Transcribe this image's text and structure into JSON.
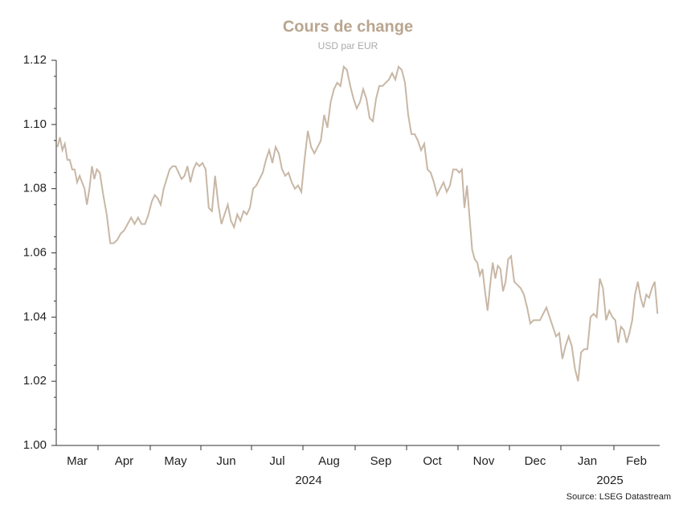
{
  "chart_data": {
    "type": "line",
    "title": "Cours de change",
    "subtitle": "USD par EUR",
    "source": "Source: LSEG Datastream",
    "categories": [
      "Mar",
      "Apr",
      "May",
      "Jun",
      "Jul",
      "Aug",
      "Sep",
      "Oct",
      "Nov",
      "Dec",
      "Jan",
      "Feb"
    ],
    "year_labels": [
      "2024",
      "2025"
    ],
    "color": "#c8b7a5",
    "values": [
      [
        1.093,
        1.096,
        1.092,
        1.094,
        1.089,
        1.089,
        1.086,
        1.086,
        1.082,
        1.084,
        1.082,
        1.08,
        1.075,
        1.08,
        1.087,
        1.083,
        1.086
      ],
      [
        1.085,
        1.078,
        1.072,
        1.063,
        1.063,
        1.064,
        1.066,
        1.067,
        1.069,
        1.071,
        1.069,
        1.071,
        1.069,
        1.069,
        1.072
      ],
      [
        1.076,
        1.078,
        1.077,
        1.075,
        1.08,
        1.083,
        1.086,
        1.087,
        1.087,
        1.085,
        1.083,
        1.084,
        1.087,
        1.082,
        1.086,
        1.088,
        1.087
      ],
      [
        1.088,
        1.086,
        1.074,
        1.073,
        1.084,
        1.075,
        1.069,
        1.072,
        1.075,
        1.07,
        1.068,
        1.072,
        1.07,
        1.073,
        1.072,
        1.074
      ],
      [
        1.08,
        1.081,
        1.083,
        1.085,
        1.089,
        1.092,
        1.088,
        1.093,
        1.091,
        1.086,
        1.084,
        1.085,
        1.082,
        1.08,
        1.081,
        1.079
      ],
      [
        1.089,
        1.098,
        1.093,
        1.091,
        1.093,
        1.095,
        1.103,
        1.099,
        1.107,
        1.111,
        1.113,
        1.112,
        1.118,
        1.117,
        1.112,
        1.108
      ],
      [
        1.105,
        1.107,
        1.111,
        1.108,
        1.102,
        1.101,
        1.108,
        1.112,
        1.112,
        1.113,
        1.114,
        1.116,
        1.114,
        1.118,
        1.117,
        1.113
      ],
      [
        1.103,
        1.097,
        1.097,
        1.095,
        1.092,
        1.094,
        1.086,
        1.085,
        1.082,
        1.078,
        1.08,
        1.082,
        1.079,
        1.081,
        1.086,
        1.086
      ],
      [
        1.085,
        1.086,
        1.074,
        1.081,
        1.071,
        1.061,
        1.058,
        1.057,
        1.053,
        1.055,
        1.048,
        1.042,
        1.05,
        1.057,
        1.052,
        1.056,
        1.055,
        1.048,
        1.051,
        1.058
      ],
      [
        1.059,
        1.051,
        1.05,
        1.049,
        1.047,
        1.043,
        1.038,
        1.039,
        1.039,
        1.039,
        1.041,
        1.043,
        1.04,
        1.037,
        1.034,
        1.035
      ],
      [
        1.027,
        1.031,
        1.034,
        1.031,
        1.024,
        1.02,
        1.029,
        1.03,
        1.03,
        1.04,
        1.041,
        1.04,
        1.052,
        1.049,
        1.039,
        1.042,
        1.04
      ],
      [
        1.039,
        1.032,
        1.037,
        1.036,
        1.032,
        1.035,
        1.039,
        1.047,
        1.051,
        1.046,
        1.043,
        1.047,
        1.046,
        1.049,
        1.051,
        1.041
      ]
    ],
    "ylim": [
      1,
      1.12
    ],
    "yticks": [
      {
        "value": 1,
        "label": "1.00"
      },
      1.02,
      1.04,
      1.06,
      1.08,
      {
        "value": 1.1,
        "label": "1.10"
      },
      1.12
    ],
    "grid": false
  }
}
